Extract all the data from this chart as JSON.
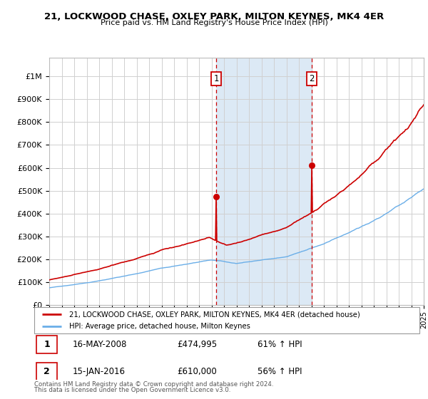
{
  "title1": "21, LOCKWOOD CHASE, OXLEY PARK, MILTON KEYNES, MK4 4ER",
  "title2": "Price paid vs. HM Land Registry's House Price Index (HPI)",
  "legend_line1": "21, LOCKWOOD CHASE, OXLEY PARK, MILTON KEYNES, MK4 4ER (detached house)",
  "legend_line2": "HPI: Average price, detached house, Milton Keynes",
  "annotation1_date": "16-MAY-2008",
  "annotation1_price": "£474,995",
  "annotation1_hpi": "61% ↑ HPI",
  "annotation2_date": "15-JAN-2016",
  "annotation2_price": "£610,000",
  "annotation2_hpi": "56% ↑ HPI",
  "footnote1": "Contains HM Land Registry data © Crown copyright and database right 2024.",
  "footnote2": "This data is licensed under the Open Government Licence v3.0.",
  "hpi_color": "#6aaee8",
  "price_color": "#cc0000",
  "yticks": [
    0,
    100000,
    200000,
    300000,
    400000,
    500000,
    600000,
    700000,
    800000,
    900000,
    1000000
  ],
  "ytick_labels": [
    "£0",
    "£100K",
    "£200K",
    "£300K",
    "£400K",
    "£500K",
    "£600K",
    "£700K",
    "£800K",
    "£900K",
    "£1M"
  ],
  "ylim": [
    0,
    1080000
  ],
  "xmin": 1995,
  "xmax": 2025,
  "marker1_year": 2008.375,
  "marker2_year": 2016.04,
  "marker1_price": 474995,
  "marker2_price": 610000,
  "shade_color": "#dce9f5",
  "grid_color": "#d0d0d0",
  "background_color": "#ffffff"
}
